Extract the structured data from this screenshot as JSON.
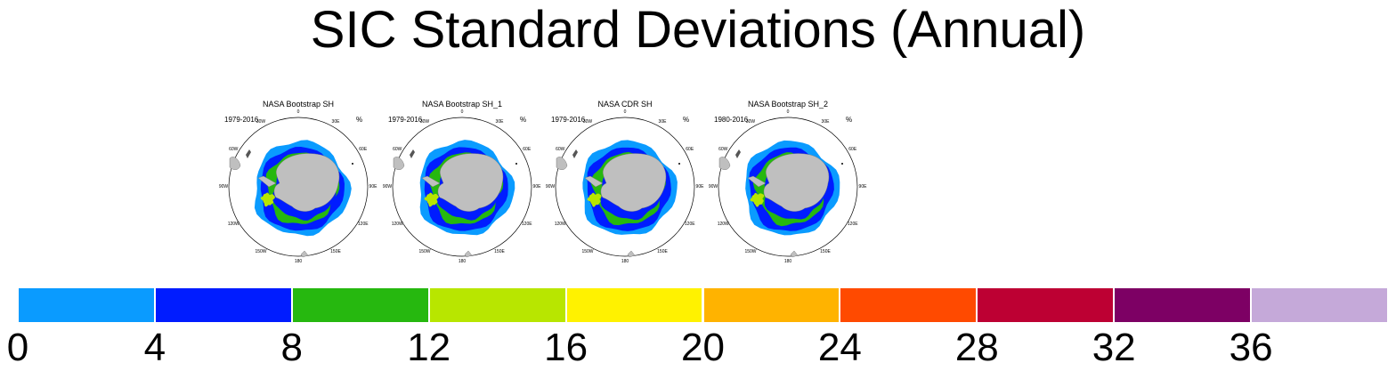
{
  "title": "SIC Standard Deviations (Annual)",
  "chart_data": {
    "type": "polar-map-panels",
    "title": "SIC Standard Deviations (Annual)",
    "units": "%",
    "panels": [
      {
        "title": "NASA Bootstrap SH",
        "years": "1979-2016",
        "unit_label": "%"
      },
      {
        "title": "NASA Bootstrap SH_1",
        "years": "1979-2016",
        "unit_label": "%"
      },
      {
        "title": "NASA CDR SH",
        "years": "1979-2016",
        "unit_label": "%"
      },
      {
        "title": "NASA Bootstrap SH_2",
        "years": "1980-2016",
        "unit_label": "%"
      }
    ],
    "longitude_labels": [
      "0",
      "30E",
      "60E",
      "90E",
      "120E",
      "150E",
      "180",
      "150W",
      "120W",
      "90W",
      "60W",
      "30W"
    ],
    "colorbar": {
      "ticks": [
        "0",
        "4",
        "8",
        "12",
        "16",
        "20",
        "24",
        "28",
        "32",
        "36"
      ],
      "bins": [
        {
          "min": 0,
          "max": 4,
          "color": "#0a9bff"
        },
        {
          "min": 4,
          "max": 8,
          "color": "#001cff"
        },
        {
          "min": 8,
          "max": 12,
          "color": "#26b80f"
        },
        {
          "min": 12,
          "max": 16,
          "color": "#b8e600"
        },
        {
          "min": 16,
          "max": 20,
          "color": "#fff200"
        },
        {
          "min": 20,
          "max": 24,
          "color": "#ffb300"
        },
        {
          "min": 24,
          "max": 28,
          "color": "#ff4a00"
        },
        {
          "min": 28,
          "max": 32,
          "color": "#bd0033"
        },
        {
          "min": 32,
          "max": 36,
          "color": "#7d0064"
        },
        {
          "min": 36,
          "max": 40,
          "color": "#c5a9d9"
        }
      ]
    },
    "land_color": "#bfbfbf"
  }
}
